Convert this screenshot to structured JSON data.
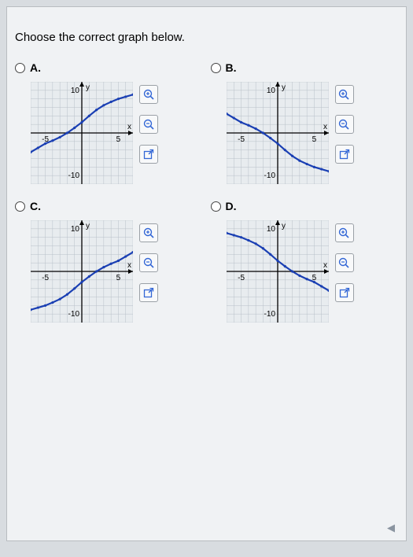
{
  "instruction": "Choose the correct graph below.",
  "axis": {
    "x_label": "x",
    "y_label": "y"
  },
  "chart_common": {
    "xlim": [
      -7,
      7
    ],
    "ylim": [
      -12,
      12
    ],
    "xticks": [
      -5,
      5
    ],
    "yticks": [
      -10,
      10
    ],
    "grid_color": "#b8c0c8",
    "axis_color": "#000000",
    "curve_color": "#1a3fb3",
    "curve_width": 2.2,
    "dot_radius": 1.6,
    "tick_fontsize": 10,
    "axis_label_fontsize": 10,
    "background_color": "#e8ecef"
  },
  "options": [
    {
      "label": "A.",
      "curve": [
        [
          -7,
          -4.5
        ],
        [
          -6,
          -3.5
        ],
        [
          -5,
          -2.5
        ],
        [
          -4,
          -1.8
        ],
        [
          -3,
          -1
        ],
        [
          -2,
          0
        ],
        [
          -1,
          1.2
        ],
        [
          0,
          2.5
        ],
        [
          1,
          4
        ],
        [
          2,
          5.4
        ],
        [
          3,
          6.5
        ],
        [
          4,
          7.3
        ],
        [
          5,
          8
        ],
        [
          6,
          8.5
        ],
        [
          7,
          9
        ]
      ]
    },
    {
      "label": "B.",
      "curve": [
        [
          -7,
          4.5
        ],
        [
          -6,
          3.5
        ],
        [
          -5,
          2.5
        ],
        [
          -4,
          1.8
        ],
        [
          -3,
          1
        ],
        [
          -2,
          0
        ],
        [
          -1,
          -1.2
        ],
        [
          0,
          -2.5
        ],
        [
          1,
          -4
        ],
        [
          2,
          -5.4
        ],
        [
          3,
          -6.5
        ],
        [
          4,
          -7.3
        ],
        [
          5,
          -8
        ],
        [
          6,
          -8.5
        ],
        [
          7,
          -9
        ]
      ]
    },
    {
      "label": "C.",
      "curve": [
        [
          -7,
          -9
        ],
        [
          -6,
          -8.5
        ],
        [
          -5,
          -8
        ],
        [
          -4,
          -7.3
        ],
        [
          -3,
          -6.5
        ],
        [
          -2,
          -5.4
        ],
        [
          -1,
          -4
        ],
        [
          0,
          -2.5
        ],
        [
          1,
          -1.2
        ],
        [
          2,
          0
        ],
        [
          3,
          1
        ],
        [
          4,
          1.8
        ],
        [
          5,
          2.5
        ],
        [
          6,
          3.5
        ],
        [
          7,
          4.5
        ]
      ]
    },
    {
      "label": "D.",
      "curve": [
        [
          -7,
          9
        ],
        [
          -6,
          8.5
        ],
        [
          -5,
          8
        ],
        [
          -4,
          7.3
        ],
        [
          -3,
          6.5
        ],
        [
          -2,
          5.4
        ],
        [
          -1,
          4
        ],
        [
          0,
          2.5
        ],
        [
          1,
          1.2
        ],
        [
          2,
          0
        ],
        [
          3,
          -1
        ],
        [
          4,
          -1.8
        ],
        [
          5,
          -2.5
        ],
        [
          6,
          -3.5
        ],
        [
          7,
          -4.5
        ]
      ]
    }
  ],
  "tools": {
    "zoom_in": "zoom-in",
    "zoom_out": "zoom-out",
    "popout": "popout"
  },
  "footer_marker": "◀"
}
